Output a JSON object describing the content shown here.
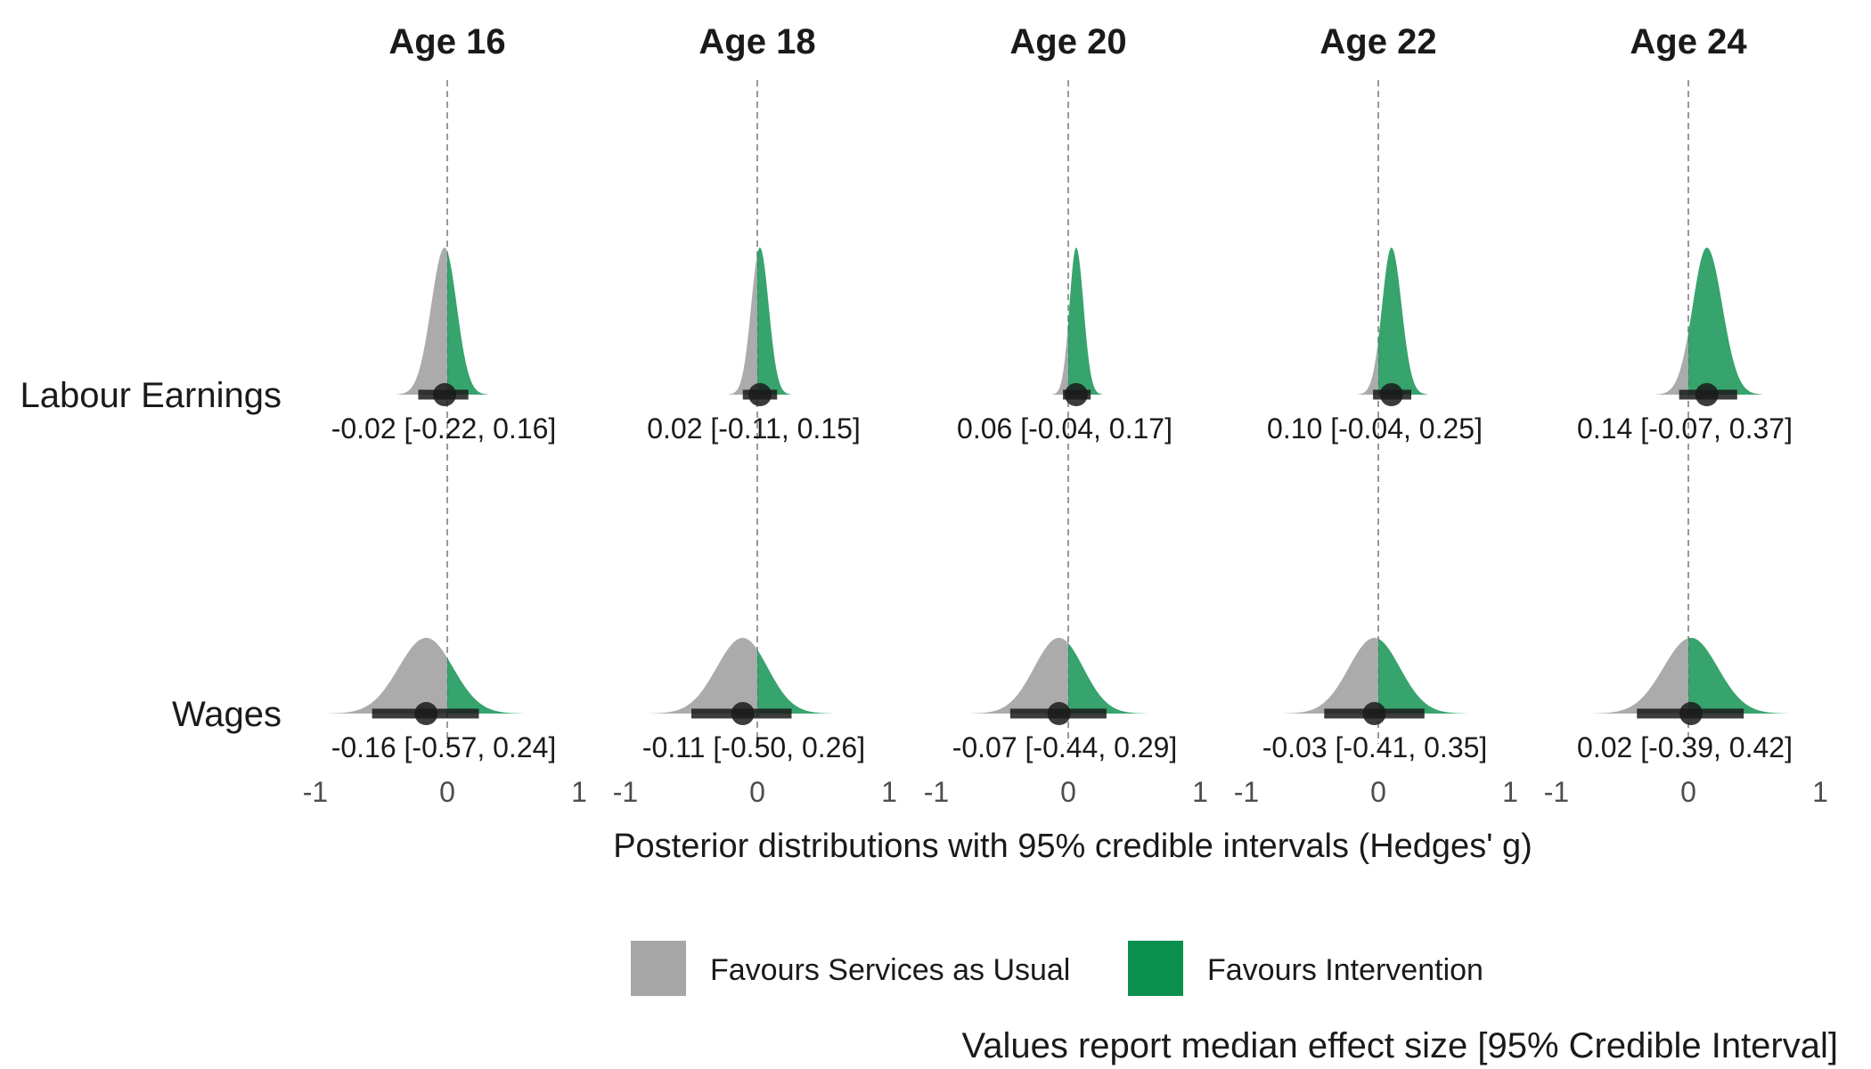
{
  "chart_data": {
    "type": "density",
    "facets": [
      "Age 16",
      "Age 18",
      "Age 20",
      "Age 22",
      "Age 24"
    ],
    "rows": [
      "Labour Earnings",
      "Wages"
    ],
    "xlim": [
      -1,
      1
    ],
    "x_ticks": [
      "-1",
      "0",
      "1"
    ],
    "reference_line": 0,
    "xlabel": "Posterior distributions with 95% credible intervals (Hedges' g)",
    "caption": "Values report median effect size [95% Credible Interval]",
    "legend": {
      "position": "bottom",
      "items": [
        {
          "label": "Favours Services as Usual",
          "color": "#a6a6a6"
        },
        {
          "label": "Favours Intervention",
          "color": "#0b8f4d"
        }
      ]
    },
    "colors": {
      "negative": "#a6a6a6",
      "positive": "#0b8f4d",
      "interval": "#1a1a1a",
      "reference": "#999999"
    },
    "series": [
      {
        "row": "Labour Earnings",
        "facet": "Age 16",
        "median": -0.02,
        "lower": -0.22,
        "upper": 0.16,
        "label": "-0.02 [-0.22, 0.16]"
      },
      {
        "row": "Labour Earnings",
        "facet": "Age 18",
        "median": 0.02,
        "lower": -0.11,
        "upper": 0.15,
        "label": "0.02 [-0.11, 0.15]"
      },
      {
        "row": "Labour Earnings",
        "facet": "Age 20",
        "median": 0.06,
        "lower": -0.04,
        "upper": 0.17,
        "label": "0.06 [-0.04, 0.17]"
      },
      {
        "row": "Labour Earnings",
        "facet": "Age 22",
        "median": 0.1,
        "lower": -0.04,
        "upper": 0.25,
        "label": "0.10 [-0.04, 0.25]"
      },
      {
        "row": "Labour Earnings",
        "facet": "Age 24",
        "median": 0.14,
        "lower": -0.07,
        "upper": 0.37,
        "label": "0.14 [-0.07, 0.37]"
      },
      {
        "row": "Wages",
        "facet": "Age 16",
        "median": -0.16,
        "lower": -0.57,
        "upper": 0.24,
        "label": "-0.16 [-0.57, 0.24]"
      },
      {
        "row": "Wages",
        "facet": "Age 18",
        "median": -0.11,
        "lower": -0.5,
        "upper": 0.26,
        "label": "-0.11 [-0.50, 0.26]"
      },
      {
        "row": "Wages",
        "facet": "Age 20",
        "median": -0.07,
        "lower": -0.44,
        "upper": 0.29,
        "label": "-0.07 [-0.44, 0.29]"
      },
      {
        "row": "Wages",
        "facet": "Age 22",
        "median": -0.03,
        "lower": -0.41,
        "upper": 0.35,
        "label": "-0.03 [-0.41, 0.35]"
      },
      {
        "row": "Wages",
        "facet": "Age 24",
        "median": 0.02,
        "lower": -0.39,
        "upper": 0.42,
        "label": "0.02 [-0.39, 0.42]"
      }
    ]
  }
}
